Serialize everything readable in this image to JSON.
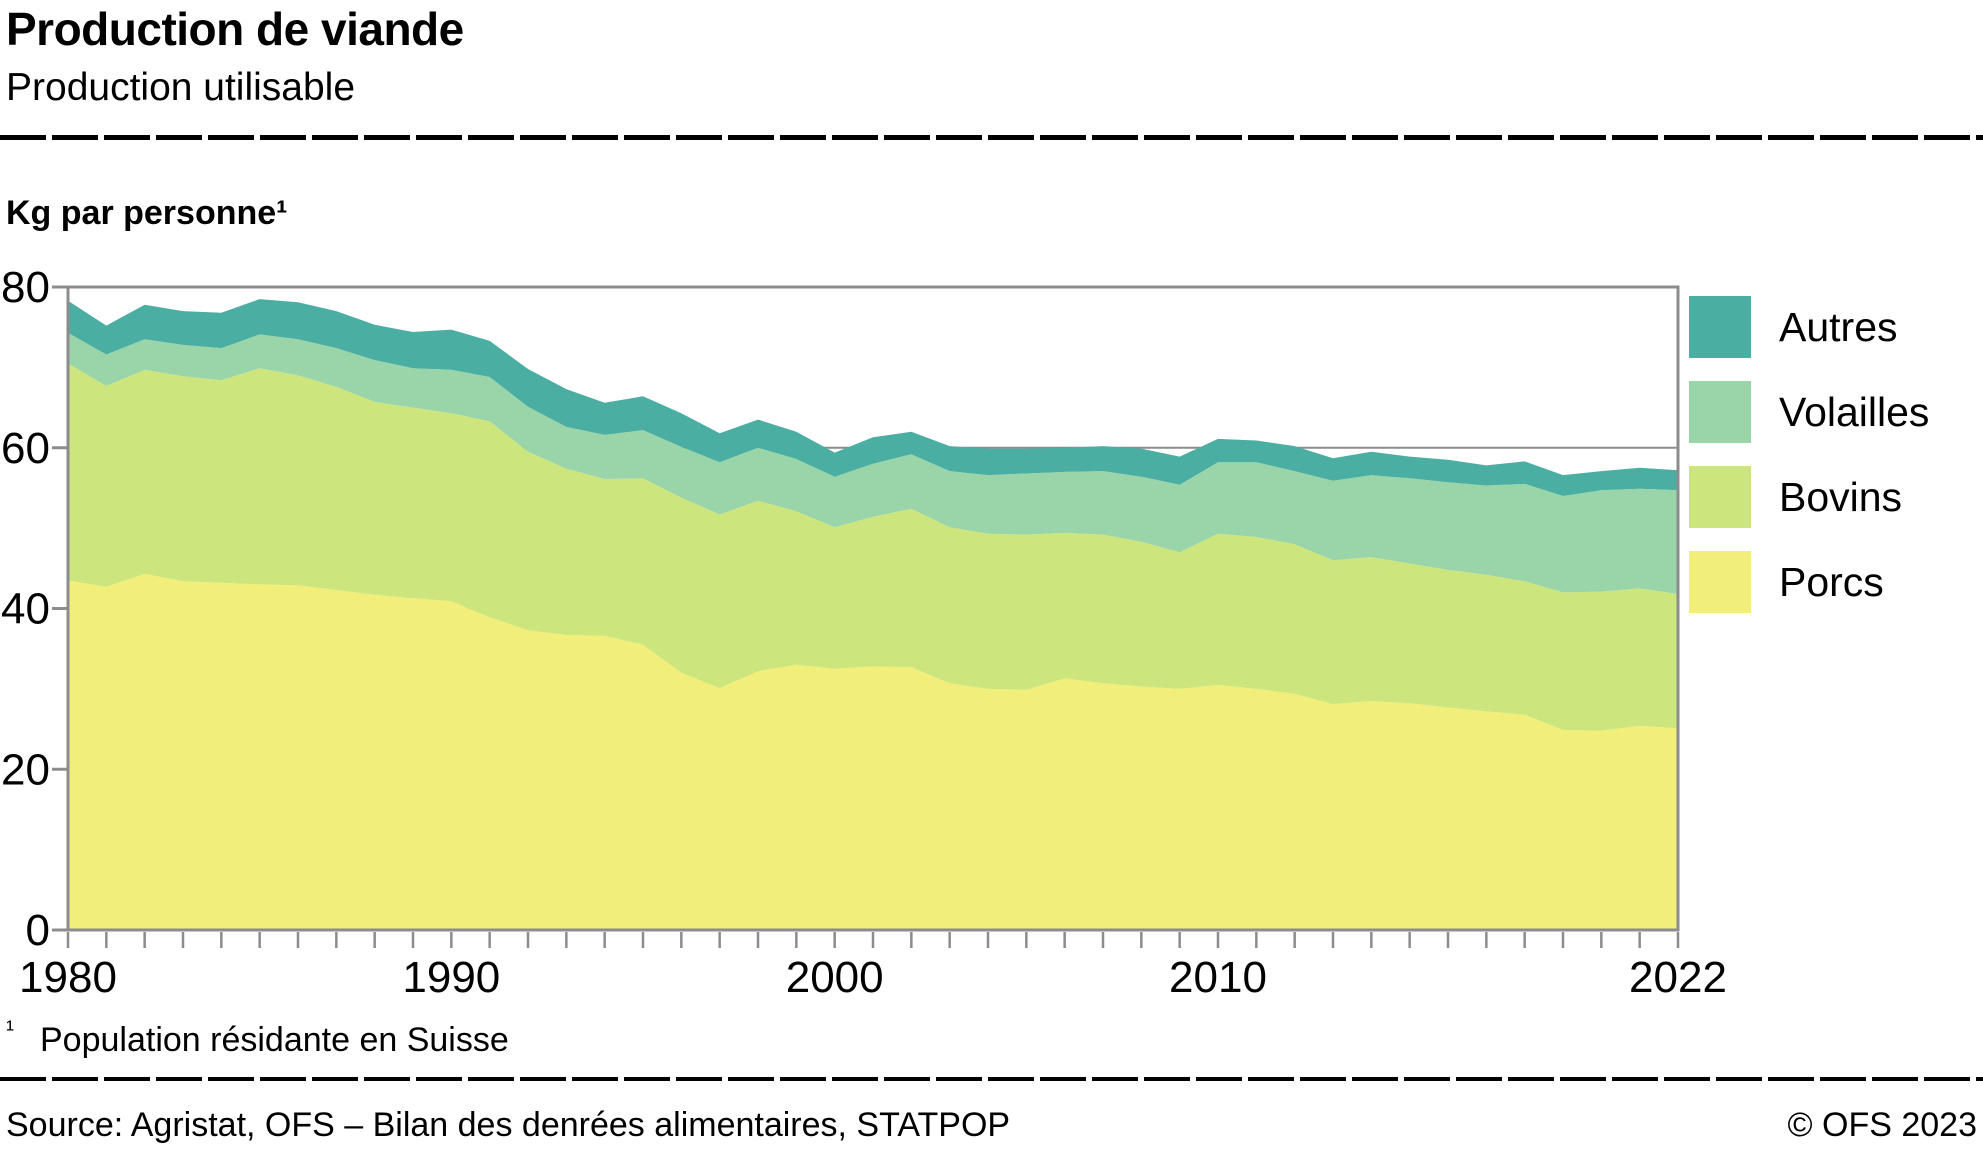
{
  "header": {
    "title": "Production de viande",
    "subtitle": "Production utilisable"
  },
  "chart_data": {
    "type": "area",
    "stacked": true,
    "unit_label": "Kg par personne¹",
    "x": [
      1980,
      1981,
      1982,
      1983,
      1984,
      1985,
      1986,
      1987,
      1988,
      1989,
      1990,
      1991,
      1992,
      1993,
      1994,
      1995,
      1996,
      1997,
      1998,
      1999,
      2000,
      2001,
      2002,
      2003,
      2004,
      2005,
      2006,
      2007,
      2008,
      2009,
      2010,
      2011,
      2012,
      2013,
      2014,
      2015,
      2016,
      2017,
      2018,
      2019,
      2020,
      2021,
      2022
    ],
    "series": [
      {
        "name": "Porcs",
        "color": "#F1EE7A",
        "values": [
          43.5,
          42.7,
          44.3,
          43.4,
          43.2,
          43.0,
          42.9,
          42.3,
          41.7,
          41.3,
          40.9,
          38.9,
          37.3,
          36.7,
          36.6,
          35.5,
          32.0,
          30.1,
          32.2,
          33.0,
          32.5,
          32.8,
          32.7,
          30.7,
          30.0,
          29.9,
          31.3,
          30.7,
          30.3,
          30.0,
          30.5,
          30.0,
          29.4,
          28.1,
          28.5,
          28.2,
          27.7,
          27.2,
          26.8,
          24.9,
          24.8,
          25.4,
          25.1
        ]
      },
      {
        "name": "Bovins",
        "color": "#CCE57C",
        "values": [
          27.0,
          25.0,
          25.4,
          25.5,
          25.2,
          26.9,
          26.1,
          25.3,
          24.0,
          23.7,
          23.4,
          24.4,
          22.2,
          20.7,
          19.5,
          20.7,
          21.8,
          21.6,
          21.2,
          19.1,
          17.6,
          18.6,
          19.7,
          19.4,
          19.3,
          19.3,
          18.1,
          18.5,
          18.0,
          17.0,
          18.8,
          18.9,
          18.6,
          17.9,
          17.9,
          17.4,
          17.1,
          17.0,
          16.6,
          17.1,
          17.3,
          17.1,
          16.7
        ]
      },
      {
        "name": "Volailles",
        "color": "#9AD4A9",
        "values": [
          3.8,
          3.9,
          3.8,
          3.9,
          4.0,
          4.2,
          4.5,
          4.8,
          5.2,
          4.9,
          5.4,
          5.5,
          5.6,
          5.2,
          5.5,
          6.0,
          6.3,
          6.5,
          6.6,
          6.5,
          6.3,
          6.6,
          6.8,
          7.0,
          7.3,
          7.6,
          7.6,
          7.9,
          8.1,
          8.4,
          8.9,
          9.3,
          9.1,
          9.9,
          10.2,
          10.6,
          10.9,
          11.1,
          12.1,
          12.0,
          12.6,
          12.4,
          12.9
        ]
      },
      {
        "name": "Autres",
        "color": "#4BAEA3",
        "values": [
          4.0,
          3.6,
          4.3,
          4.2,
          4.4,
          4.4,
          4.6,
          4.6,
          4.4,
          4.5,
          5.0,
          4.5,
          4.7,
          4.7,
          4.0,
          4.2,
          4.2,
          3.6,
          3.5,
          3.4,
          3.0,
          3.3,
          2.8,
          3.1,
          3.3,
          3.1,
          3.0,
          3.1,
          3.5,
          3.5,
          2.9,
          2.7,
          3.1,
          2.8,
          2.9,
          2.7,
          2.8,
          2.5,
          2.8,
          2.6,
          2.4,
          2.6,
          2.5
        ]
      }
    ],
    "ylim": [
      0,
      80
    ],
    "yticks": [
      0,
      20,
      40,
      60,
      80
    ],
    "xtick_labels": [
      "1980",
      "1990",
      "2000",
      "2010",
      "2022"
    ],
    "grid": "horizontal gridlines at 20/40/60/80, drawn behind areas",
    "legend_position": "right"
  },
  "legend": {
    "items": [
      {
        "label": "Autres",
        "color": "#4BAEA3"
      },
      {
        "label": "Volailles",
        "color": "#9AD4A9"
      },
      {
        "label": "Bovins",
        "color": "#CCE57C"
      },
      {
        "label": "Porcs",
        "color": "#F1EE7A"
      }
    ]
  },
  "footnote": {
    "marker": "¹",
    "text": "Population résidante en Suisse"
  },
  "footer": {
    "source": "Source: Agristat, OFS – Bilan des denrées alimentaires, STATPOP",
    "copyright": "© OFS 2023"
  },
  "colors": {
    "axis": "#8C8C8C",
    "gridline": "#8C8C8C",
    "text": "#000000",
    "background": "#FFFFFF"
  }
}
